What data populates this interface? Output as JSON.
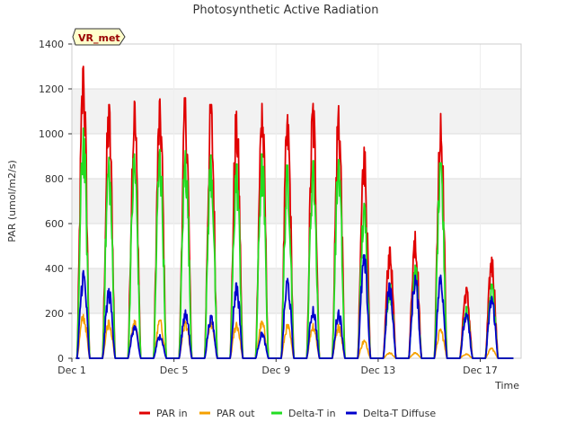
{
  "chart_data": {
    "type": "line",
    "title": "Photosynthetic Active Radiation",
    "xlabel": "Time",
    "ylabel": "PAR (umol/m2/s)",
    "badge": "VR_met",
    "ylim": [
      0,
      1400
    ],
    "xlim": [
      1.0,
      18.6
    ],
    "y_ticks": [
      0,
      200,
      400,
      600,
      800,
      1000,
      1200,
      1400
    ],
    "x_ticks": [
      {
        "value": 1,
        "label": "Dec 1"
      },
      {
        "value": 5,
        "label": "Dec 5"
      },
      {
        "value": 9,
        "label": "Dec 9"
      },
      {
        "value": 13,
        "label": "Dec 13"
      },
      {
        "value": 17,
        "label": "Dec 17"
      }
    ],
    "grid": true,
    "legend_position": "bottom",
    "data_start": 1.3,
    "data_end": 18.3,
    "day_center_offset": 0.45,
    "day_half_width": 0.25,
    "series": [
      {
        "name": "PAR in",
        "color": "#e00000",
        "peaks": [
          1300,
          1130,
          1145,
          1155,
          1160,
          1130,
          1100,
          1135,
          1085,
          1135,
          1125,
          940,
          495,
          565,
          1090,
          315,
          450
        ]
      },
      {
        "name": "PAR out",
        "color": "#f5a000",
        "peaks": [
          195,
          170,
          170,
          170,
          165,
          160,
          160,
          165,
          150,
          155,
          150,
          80,
          25,
          25,
          130,
          20,
          45
        ]
      },
      {
        "name": "Delta-T in",
        "color": "#22dd22",
        "peaks": [
          1025,
          895,
          910,
          930,
          925,
          905,
          865,
          910,
          860,
          880,
          885,
          690,
          330,
          415,
          870,
          230,
          330
        ]
      },
      {
        "name": "Delta-T Diffuse",
        "color": "#0000cc",
        "peaks": [
          390,
          310,
          145,
          105,
          215,
          190,
          335,
          115,
          355,
          230,
          215,
          460,
          335,
          370,
          370,
          200,
          275
        ]
      }
    ]
  }
}
